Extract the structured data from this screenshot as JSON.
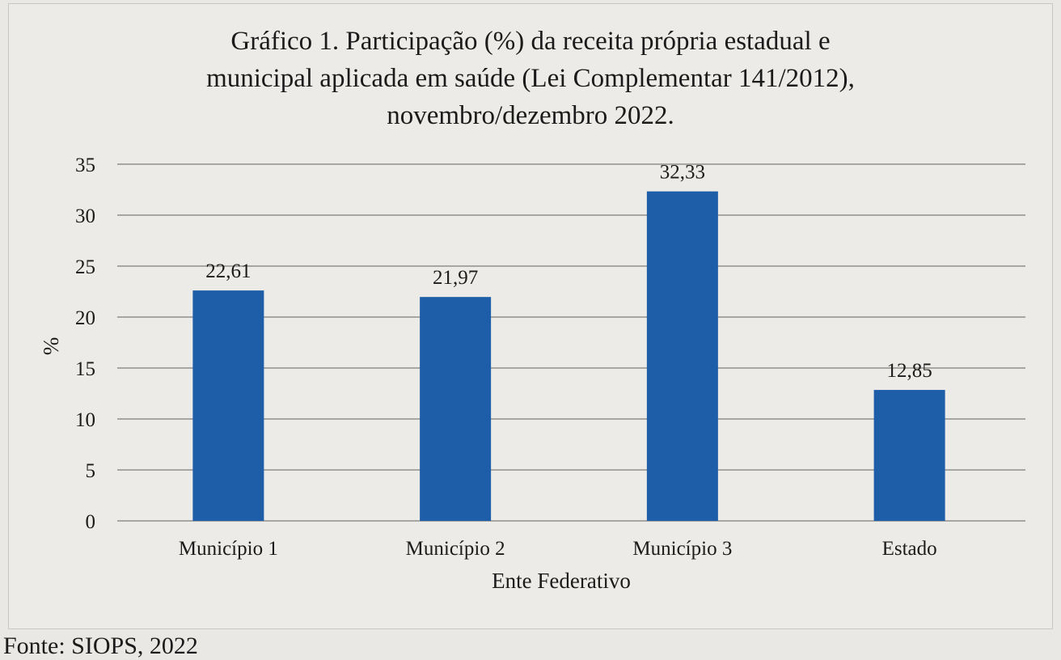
{
  "chart_data": {
    "type": "bar",
    "title_lines": [
      "Gráfico 1. Participação (%) da receita própria estadual e",
      "municipal aplicada em saúde (Lei Complementar 141/2012),",
      "novembro/dezembro 2022."
    ],
    "categories": [
      "Município 1",
      "Município 2",
      "Município 3",
      "Estado"
    ],
    "values": [
      22.61,
      21.97,
      32.33,
      12.85
    ],
    "data_labels": [
      "22,61",
      "21,97",
      "32,33",
      "12,85"
    ],
    "xlabel": "Ente Federativo",
    "ylabel": "%",
    "ylim": [
      0,
      35
    ],
    "yticks": [
      0,
      5,
      10,
      15,
      20,
      25,
      30,
      35
    ],
    "grid": true,
    "legend": "none",
    "bar_color": "#1e5ea8",
    "grid_color": "#8f8f8f"
  },
  "source": "Fonte: SIOPS, 2022"
}
